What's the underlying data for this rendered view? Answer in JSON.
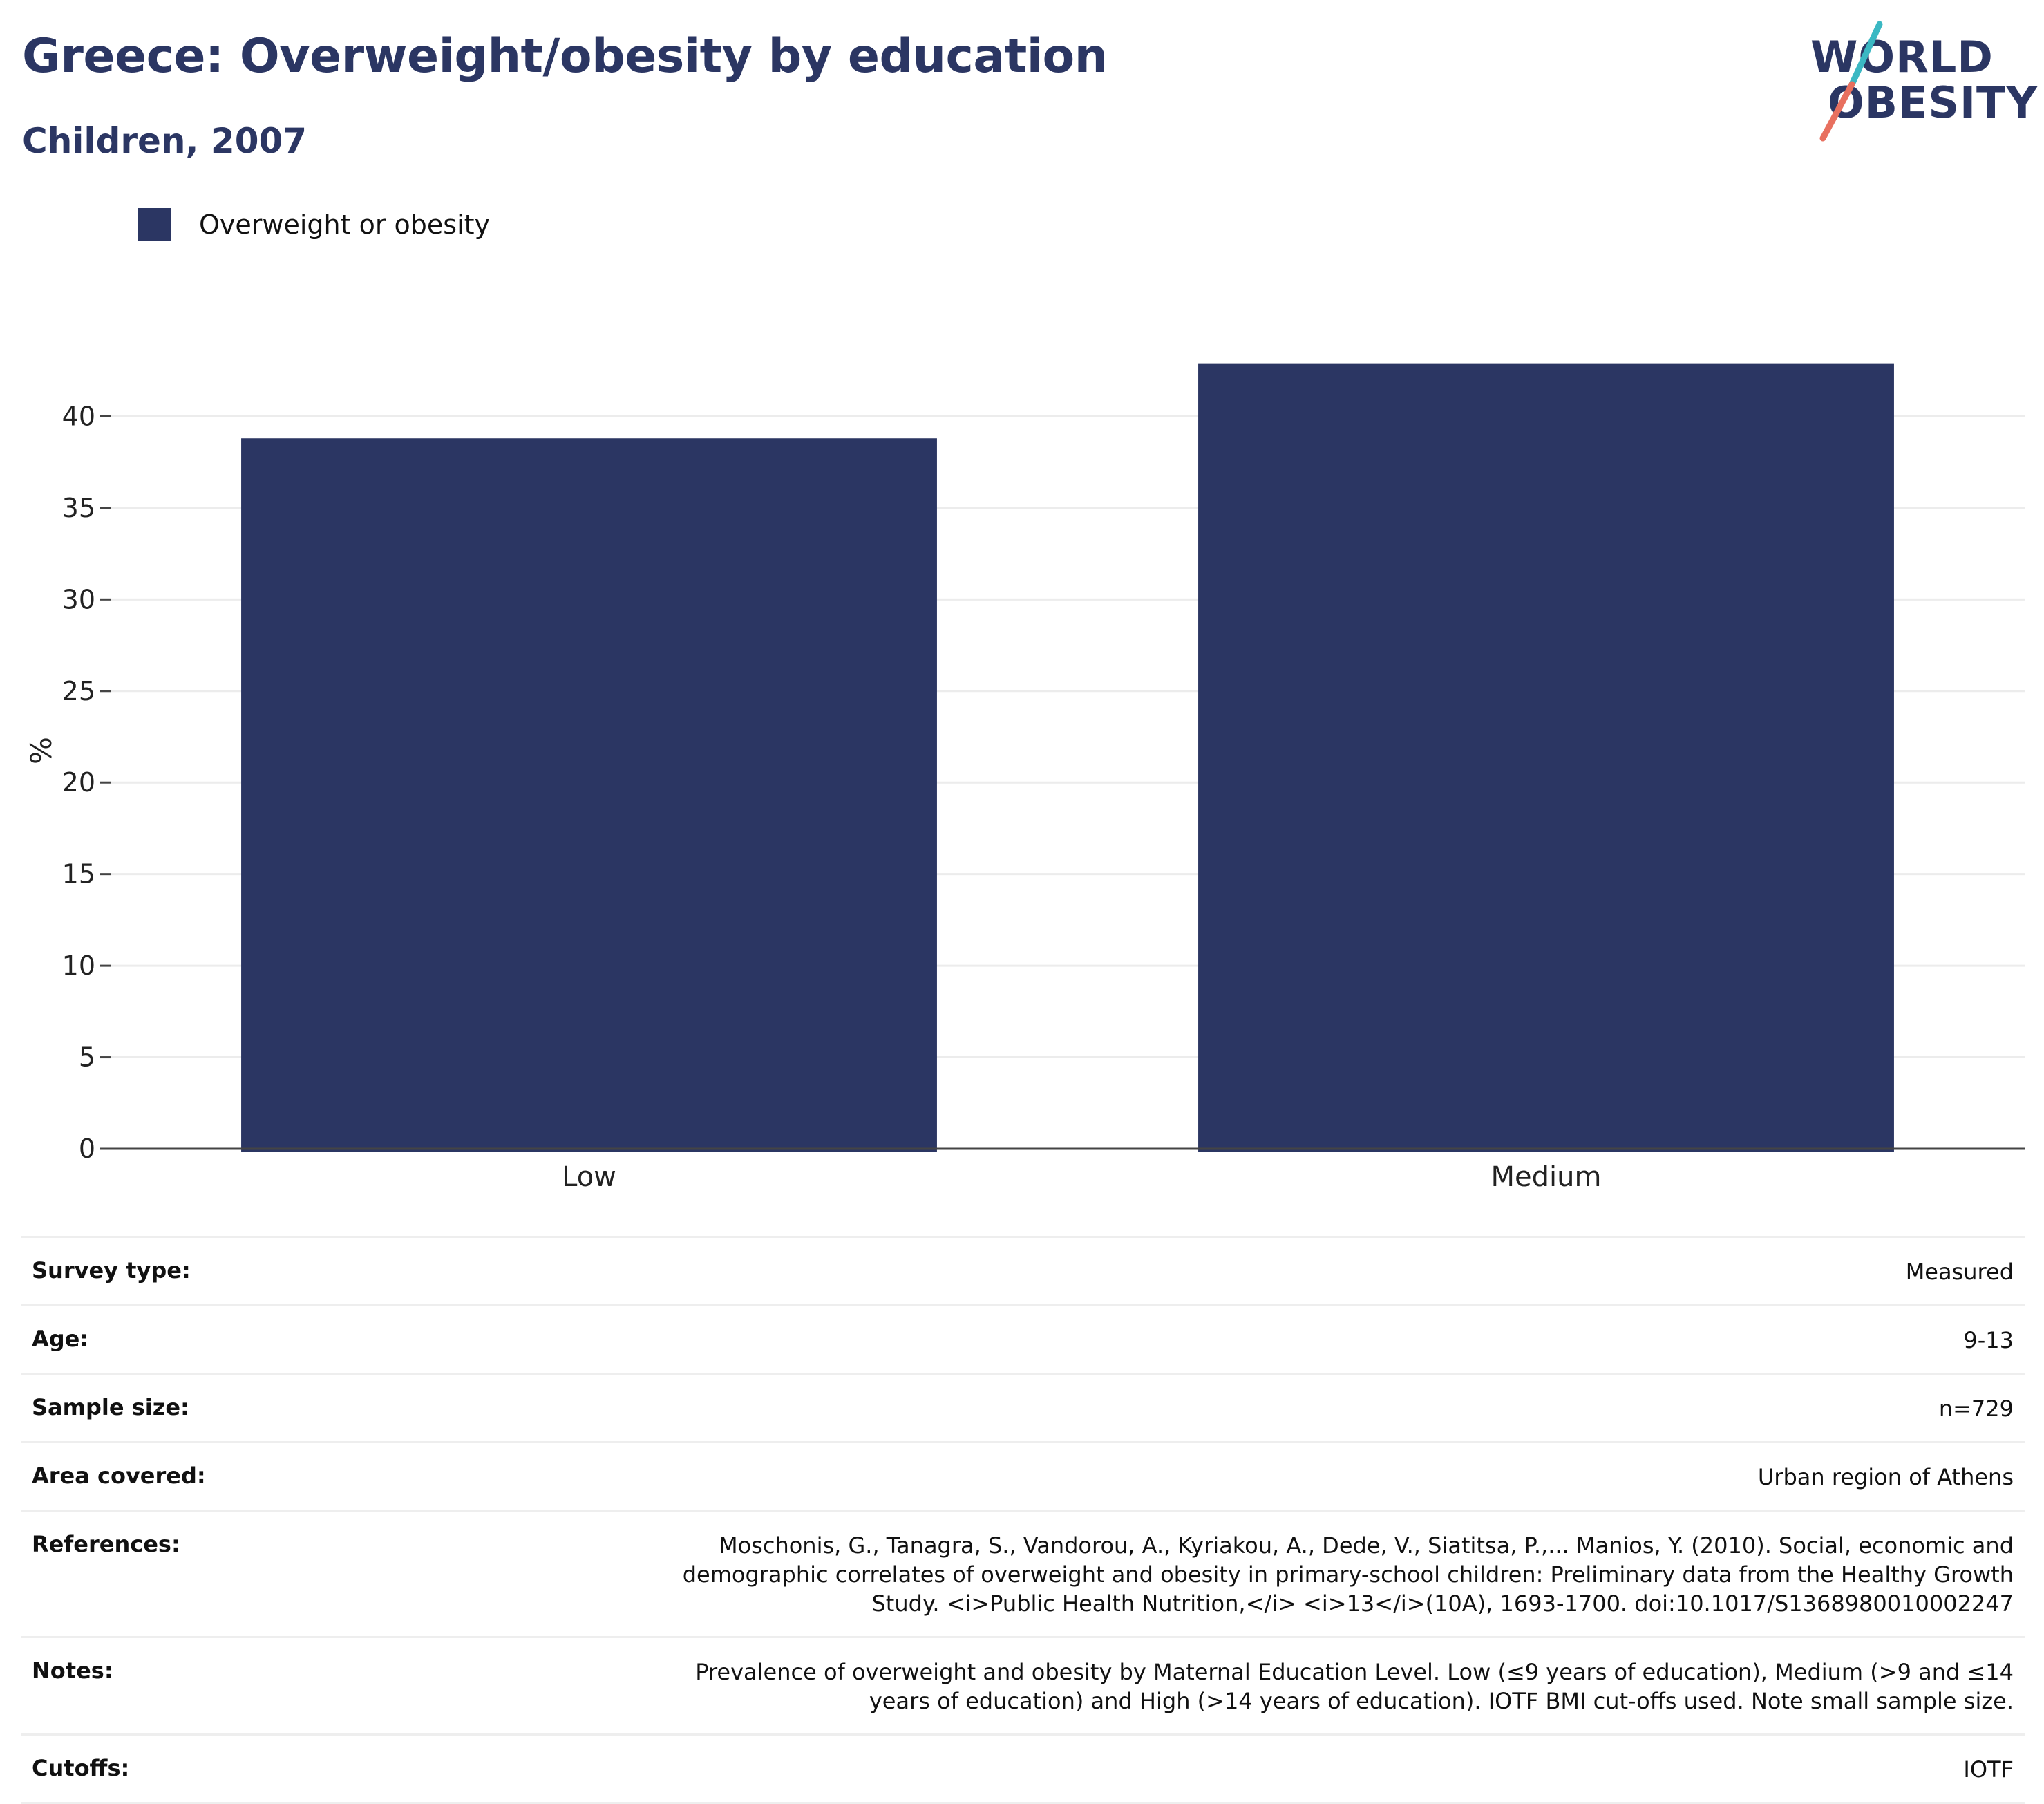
{
  "header": {
    "title": "Greece: Overweight/obesity by education",
    "subtitle": "Children, 2007",
    "logo_line1": "WORLD",
    "logo_line2": "OBESITY"
  },
  "legend": {
    "label": "Overweight or obesity",
    "color": "#2b3663"
  },
  "chart_data": {
    "type": "bar",
    "categories": [
      "Low",
      "Medium"
    ],
    "series": [
      {
        "name": "Overweight or obesity",
        "values": [
          38.8,
          42.9
        ],
        "color": "#2b3663"
      }
    ],
    "xlabel": "",
    "ylabel": "%",
    "ylim": [
      0,
      45
    ],
    "yticks": [
      0,
      5,
      10,
      15,
      20,
      25,
      30,
      35,
      40
    ],
    "grid": true,
    "legend_position": "top-left"
  },
  "info": [
    {
      "key": "Survey type:",
      "value": "Measured"
    },
    {
      "key": "Age:",
      "value": "9-13"
    },
    {
      "key": "Sample size:",
      "value": "n=729"
    },
    {
      "key": "Area covered:",
      "value": "Urban region of Athens"
    },
    {
      "key": "References:",
      "value": "Moschonis, G., Tanagra, S., Vandorou, A., Kyriakou, A., Dede, V., Siatitsa, P.,... Manios, Y. (2010). Social, economic and demographic correlates of overweight and obesity in primary-school children: Preliminary data from the Healthy Growth Study. <i>Public Health Nutrition,</i> <i>13</i>(10A), 1693-1700. doi:10.1017/S1368980010002247"
    },
    {
      "key": "Notes:",
      "value": "Prevalence of overweight and obesity by Maternal Education Level. Low (≤9 years of education), Medium (>9 and ≤14 years of education) and High (>14 years of education). IOTF BMI cut-offs used. Note small sample size."
    },
    {
      "key": "Cutoffs:",
      "value": "IOTF"
    }
  ]
}
